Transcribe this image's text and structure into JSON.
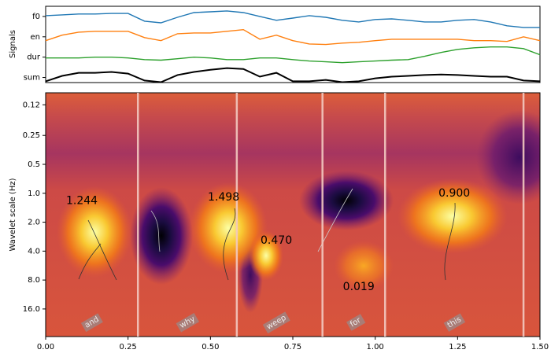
{
  "chart_data": [
    {
      "type": "line",
      "ylabel": "Signals",
      "x": [
        0,
        0.05,
        0.1,
        0.15,
        0.2,
        0.25,
        0.3,
        0.35,
        0.4,
        0.45,
        0.5,
        0.55,
        0.6,
        0.65,
        0.7,
        0.75,
        0.8,
        0.85,
        0.9,
        0.95,
        1.0,
        1.05,
        1.1,
        1.15,
        1.2,
        1.25,
        1.3,
        1.35,
        1.4,
        1.45,
        1.5
      ],
      "series": [
        {
          "name": "f0",
          "color": "#1f77b4",
          "values": [
            3.04,
            3.08,
            3.12,
            3.12,
            3.15,
            3.15,
            2.77,
            2.69,
            2.96,
            3.19,
            3.23,
            3.27,
            3.19,
            3.0,
            2.81,
            2.92,
            3.04,
            2.96,
            2.81,
            2.73,
            2.85,
            2.88,
            2.81,
            2.73,
            2.73,
            2.81,
            2.85,
            2.73,
            2.54,
            2.46,
            2.46
          ]
        },
        {
          "name": "en",
          "color": "#ff7f0e",
          "values": [
            1.81,
            2.08,
            2.23,
            2.27,
            2.27,
            2.27,
            1.96,
            1.81,
            2.15,
            2.19,
            2.19,
            2.27,
            2.35,
            1.88,
            2.08,
            1.81,
            1.65,
            1.62,
            1.69,
            1.73,
            1.81,
            1.88,
            1.88,
            1.88,
            1.88,
            1.88,
            1.81,
            1.81,
            1.77,
            2.0,
            1.81
          ]
        },
        {
          "name": "dur",
          "color": "#2ca02c",
          "values": [
            0.96,
            0.96,
            0.96,
            1.0,
            1.0,
            0.96,
            0.88,
            0.85,
            0.92,
            1.0,
            0.96,
            0.88,
            0.88,
            0.96,
            0.96,
            0.88,
            0.81,
            0.77,
            0.73,
            0.77,
            0.81,
            0.85,
            0.88,
            1.04,
            1.23,
            1.38,
            1.46,
            1.5,
            1.5,
            1.42,
            1.12
          ]
        },
        {
          "name": "sum",
          "color": "#000000",
          "values": [
            -0.19,
            0.08,
            0.23,
            0.23,
            0.27,
            0.19,
            -0.15,
            -0.23,
            0.12,
            0.27,
            0.38,
            0.46,
            0.42,
            0.04,
            0.23,
            -0.19,
            -0.19,
            -0.12,
            -0.23,
            -0.19,
            -0.04,
            0.04,
            0.08,
            0.12,
            0.15,
            0.12,
            0.08,
            0.04,
            0.04,
            -0.15,
            -0.19
          ]
        }
      ],
      "xlim": [
        0,
        1.5
      ],
      "ylim": [
        -0.25,
        3.5
      ],
      "yticks": [
        3,
        2,
        1,
        0
      ]
    },
    {
      "type": "heatmap",
      "ylabel": "Wavelet scale (Hz)",
      "xlim": [
        0,
        1.5
      ],
      "xticks": [
        {
          "value": 0,
          "label": "0.00"
        },
        {
          "value": 0.25,
          "label": "0.25"
        },
        {
          "value": 0.5,
          "label": "0.50"
        },
        {
          "value": 0.75,
          "label": "0.75"
        },
        {
          "value": 1,
          "label": "1.00"
        },
        {
          "value": 1.25,
          "label": "1.25"
        },
        {
          "value": 1.5,
          "label": "1.50"
        }
      ],
      "ylim": [
        0.09,
        31
      ],
      "y_scale": "log",
      "y_inverted": true,
      "yticks": [
        0.12,
        0.25,
        0.5,
        {
          "value": 1,
          "label": "1.0"
        },
        {
          "value": 2,
          "label": "2.0"
        },
        {
          "value": 4,
          "label": "4.0"
        },
        {
          "value": 8,
          "label": "8.0"
        },
        {
          "value": 16,
          "label": "16.0"
        }
      ],
      "boundaries": [
        0.28,
        0.58,
        0.84,
        1.03,
        1.45
      ],
      "annotations": [
        {
          "text": "1.244",
          "x": 0.11,
          "y": 1.2
        },
        {
          "text": "1.498",
          "x": 0.54,
          "y": 1.1
        },
        {
          "text": "0.470",
          "x": 0.7,
          "y": 3.1
        },
        {
          "text": "0.019",
          "x": 0.95,
          "y": 9.5
        },
        {
          "text": "0.900",
          "x": 1.24,
          "y": 1.0
        }
      ],
      "words": [
        {
          "text": "and",
          "x": 0.14,
          "y": 22
        },
        {
          "text": "why",
          "x": 0.43,
          "y": 22
        },
        {
          "text": "weep",
          "x": 0.7,
          "y": 22
        },
        {
          "text": "for",
          "x": 0.94,
          "y": 22
        },
        {
          "text": "this",
          "x": 1.24,
          "y": 22
        }
      ]
    }
  ]
}
